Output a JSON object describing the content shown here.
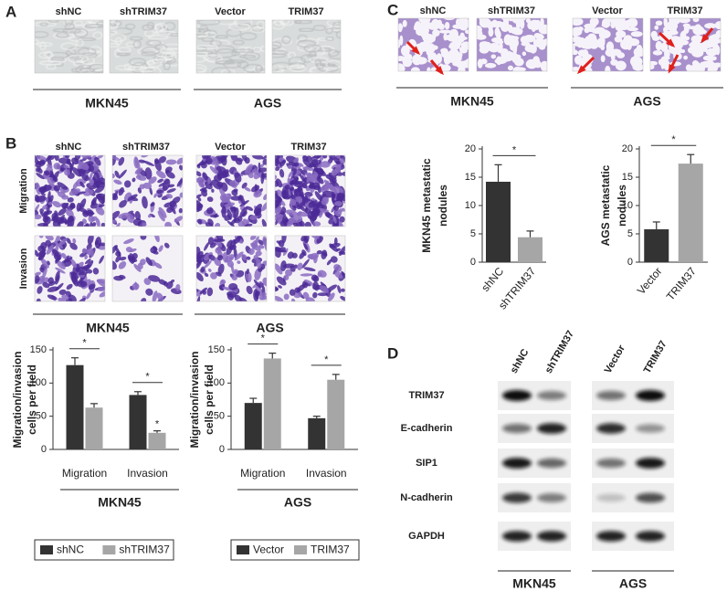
{
  "panel_labels": [
    "A",
    "B",
    "C",
    "D"
  ],
  "panel_a": {
    "columns": [
      "shNC",
      "shTRIM37",
      "Vector",
      "TRIM37"
    ],
    "groups": [
      "MKN45",
      "AGS"
    ]
  },
  "panel_b": {
    "columns": [
      "shNC",
      "shTRIM37",
      "Vector",
      "TRIM37"
    ],
    "rows": [
      "Migration",
      "Invasion"
    ],
    "groups": [
      "MKN45",
      "AGS"
    ]
  },
  "panel_c": {
    "columns": [
      "shNC",
      "shTRIM37",
      "Vector",
      "TRIM37"
    ],
    "groups": [
      "MKN45",
      "AGS"
    ]
  },
  "panel_d": {
    "columns": [
      "shNC",
      "shTRIM37",
      "Vector",
      "TRIM37"
    ],
    "rows": [
      "TRIM37",
      "E-cadherin",
      "SIP1",
      "N-cadherin",
      "GAPDH"
    ],
    "groups": [
      "MKN45",
      "AGS"
    ]
  },
  "chart_data": [
    {
      "type": "grouped_bar",
      "categories": [
        "Migration",
        "Invasion"
      ],
      "group_label": "MKN45",
      "ylabel": [
        "Migration/invasion",
        "cells per field"
      ],
      "ylim": [
        0,
        150
      ],
      "yticks": [
        0,
        50,
        100,
        150
      ],
      "series": [
        {
          "name": "shNC",
          "color": "#333333",
          "values": [
            127,
            82
          ],
          "errors": [
            11,
            5
          ]
        },
        {
          "name": "shTRIM37",
          "color": "#a6a6a6",
          "values": [
            63,
            25
          ],
          "errors": [
            6,
            3
          ]
        }
      ],
      "annotations": [
        "*",
        "*",
        "*"
      ]
    },
    {
      "type": "grouped_bar",
      "categories": [
        "Migration",
        "Invasion"
      ],
      "group_label": "AGS",
      "ylabel": [
        "Migration/invasion",
        "cells per field"
      ],
      "ylim": [
        0,
        150
      ],
      "yticks": [
        0,
        50,
        100,
        150
      ],
      "series": [
        {
          "name": "Vector",
          "color": "#333333",
          "values": [
            70,
            47
          ],
          "errors": [
            7,
            3
          ]
        },
        {
          "name": "TRIM37",
          "color": "#a6a6a6",
          "values": [
            137,
            105
          ],
          "errors": [
            8,
            8
          ]
        }
      ],
      "annotations": [
        "*",
        "*"
      ]
    },
    {
      "type": "bar",
      "categories": [
        "shNC",
        "shTRIM37"
      ],
      "values": [
        14.2,
        4.4
      ],
      "errors": [
        3,
        1.1
      ],
      "colors": [
        "#333333",
        "#a6a6a6"
      ],
      "ylabel": [
        "MKN45 metastatic",
        "nodules"
      ],
      "ylim": [
        0,
        20
      ],
      "yticks": [
        0,
        5,
        10,
        15,
        20
      ],
      "annotations": [
        "*"
      ]
    },
    {
      "type": "bar",
      "categories": [
        "Vector",
        "TRIM37"
      ],
      "values": [
        5.8,
        17.4
      ],
      "errors": [
        1.3,
        1.6
      ],
      "colors": [
        "#333333",
        "#a6a6a6"
      ],
      "ylabel": [
        "AGS metastatic",
        "nodules"
      ],
      "ylim": [
        0,
        20
      ],
      "yticks": [
        0,
        5,
        10,
        15,
        20
      ],
      "annotations": [
        "*"
      ]
    }
  ]
}
